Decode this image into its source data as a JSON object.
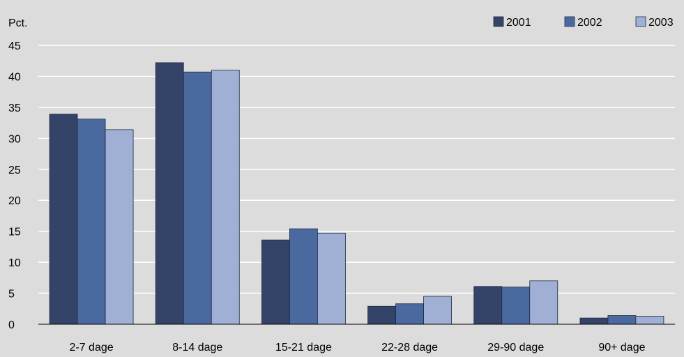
{
  "chart_data": {
    "type": "bar",
    "ylabel": "Pct.",
    "ylim": [
      0,
      45
    ],
    "yticks": [
      0,
      5,
      10,
      15,
      20,
      25,
      30,
      35,
      40,
      45
    ],
    "grid": true,
    "legend_position": "top-right",
    "categories": [
      "2-7  dage",
      "8-14 dage",
      "15-21 dage",
      "22-28 dage",
      "29-90 dage",
      "90+ dage"
    ],
    "series": [
      {
        "name": "2001",
        "color": "#344468",
        "values": [
          33.9,
          42.2,
          13.6,
          2.9,
          6.1,
          1.0
        ]
      },
      {
        "name": "2002",
        "color": "#4a699e",
        "values": [
          33.1,
          40.7,
          15.4,
          3.3,
          6.0,
          1.4
        ]
      },
      {
        "name": "2003",
        "color": "#a0b0d4",
        "values": [
          31.4,
          41.0,
          14.7,
          4.5,
          7.0,
          1.3
        ]
      }
    ]
  },
  "colors": {
    "background": "#dcdcdc",
    "gridline": "#ffffff",
    "axis": "#000000"
  }
}
